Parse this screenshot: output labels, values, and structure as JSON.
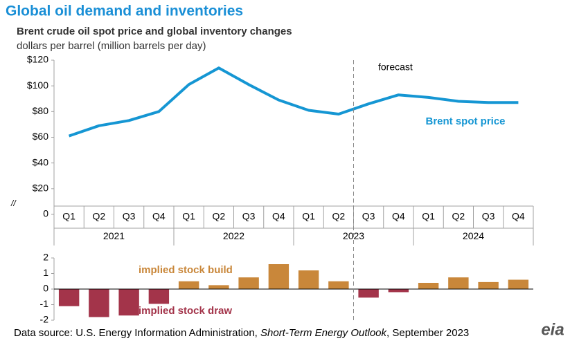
{
  "header": {
    "title": "Global oil demand and inventories"
  },
  "chart_data": [
    {
      "type": "line",
      "title": "Brent crude oil spot price and global inventory changes",
      "subtitle": "dollars per barrel (million barrels per day)",
      "categories": [
        "Q1",
        "Q2",
        "Q3",
        "Q4",
        "Q1",
        "Q2",
        "Q3",
        "Q4",
        "Q1",
        "Q2",
        "Q3",
        "Q4",
        "Q1",
        "Q2",
        "Q3",
        "Q4"
      ],
      "years": [
        "2021",
        "2022",
        "2023",
        "2024"
      ],
      "series": [
        {
          "name": "Brent spot price",
          "color": "#1596d3",
          "values": [
            61,
            69,
            73,
            80,
            101,
            114,
            101,
            89,
            81,
            78,
            86,
            93,
            91,
            88,
            87,
            87
          ]
        }
      ],
      "ylim": [
        0,
        120
      ],
      "yticks": [
        0,
        {
          "value": 20,
          "label": "$20"
        },
        {
          "value": 40,
          "label": "$40"
        },
        {
          "value": 60,
          "label": "$60"
        },
        {
          "value": 80,
          "label": "$80"
        },
        {
          "value": 100,
          "label": "$100"
        },
        {
          "value": 120,
          "label": "$120"
        }
      ],
      "annotation": "forecast",
      "axis_break": "//"
    },
    {
      "type": "bar",
      "values": [
        -1.1,
        -1.8,
        -1.7,
        -0.95,
        0.5,
        0.25,
        0.75,
        1.6,
        1.2,
        0.5,
        -0.55,
        -0.2,
        0.4,
        0.75,
        0.45,
        0.6
      ],
      "colors": {
        "positive": "#c9873a",
        "negative": "#a3344a"
      },
      "ylim": [
        -2,
        2
      ],
      "yticks": [
        -2,
        -1,
        0,
        1,
        2
      ],
      "annotations": {
        "positive": "implied stock build",
        "negative": "implied stock draw"
      }
    }
  ],
  "source": {
    "prefix": "Data source: U.S. Energy Information Administration, ",
    "italic": "Short-Term Energy Outlook",
    "suffix": ", September 2023"
  },
  "logo": "eia"
}
